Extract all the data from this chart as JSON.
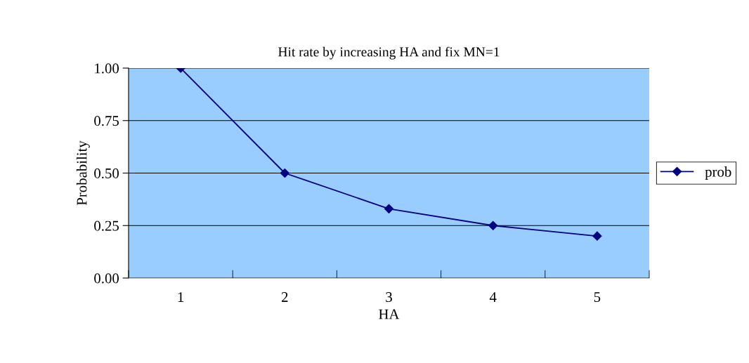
{
  "chart_data": {
    "type": "line",
    "title": "Hit rate by increasing HA and fix MN=1",
    "xlabel": "HA",
    "ylabel": "Probability",
    "categories": [
      "1",
      "2",
      "3",
      "4",
      "5"
    ],
    "series": [
      {
        "name": "prob",
        "color": "#000080",
        "values": [
          1.0,
          0.5,
          0.33,
          0.25,
          0.2
        ]
      }
    ],
    "ylim": [
      0,
      1
    ],
    "yticks": [
      {
        "value": 0,
        "label": "0.00"
      },
      {
        "value": 0.25,
        "label": "0.25"
      },
      {
        "value": 0.5,
        "label": "0.50"
      },
      {
        "value": 0.75,
        "label": "0.75"
      },
      {
        "value": 1,
        "label": "1.00"
      }
    ],
    "grid": "y",
    "legend": "right",
    "marker": "diamond",
    "line_style": "solid"
  }
}
